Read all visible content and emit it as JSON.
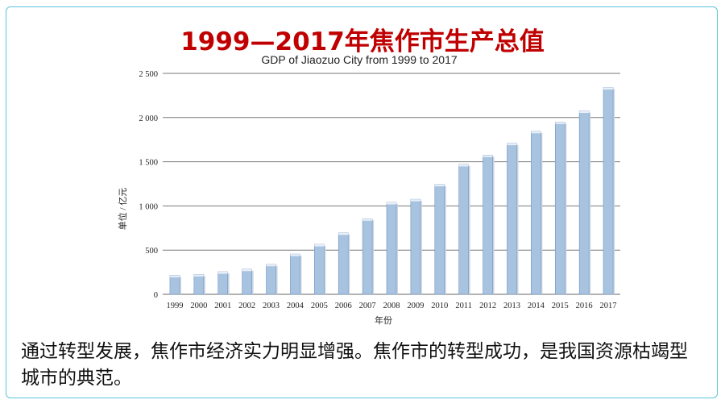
{
  "slide": {
    "title": "1999—2017年焦作市生产总值",
    "caption": "通过转型发展，焦作市经济实力明显增强。焦作市的转型成功，是我国资源枯竭型城市的典范。"
  },
  "colors": {
    "title": "#c00000",
    "bar_fill": "#a8c3e0",
    "bar_stroke": "#6f94bf",
    "frame": "#5bc4d9"
  },
  "chart_data": {
    "type": "bar",
    "title": "GDP of Jiaozuo City from 1999 to 2017",
    "xlabel": "年份",
    "ylabel": "单位 / 亿元",
    "ylim": [
      0,
      2500
    ],
    "yticks": [
      0,
      500,
      1000,
      1500,
      2000,
      2500
    ],
    "ytick_labels": [
      "0",
      "500",
      "1 000",
      "1 500",
      "2 000",
      "2 500"
    ],
    "grid": true,
    "categories": [
      "1999",
      "2000",
      "2001",
      "2002",
      "2003",
      "2004",
      "2005",
      "2006",
      "2007",
      "2008",
      "2009",
      "2010",
      "2011",
      "2012",
      "2013",
      "2014",
      "2015",
      "2016",
      "2017"
    ],
    "values": [
      215,
      225,
      255,
      285,
      340,
      455,
      565,
      695,
      855,
      1040,
      1075,
      1245,
      1470,
      1575,
      1710,
      1845,
      1950,
      2075,
      2340
    ]
  }
}
